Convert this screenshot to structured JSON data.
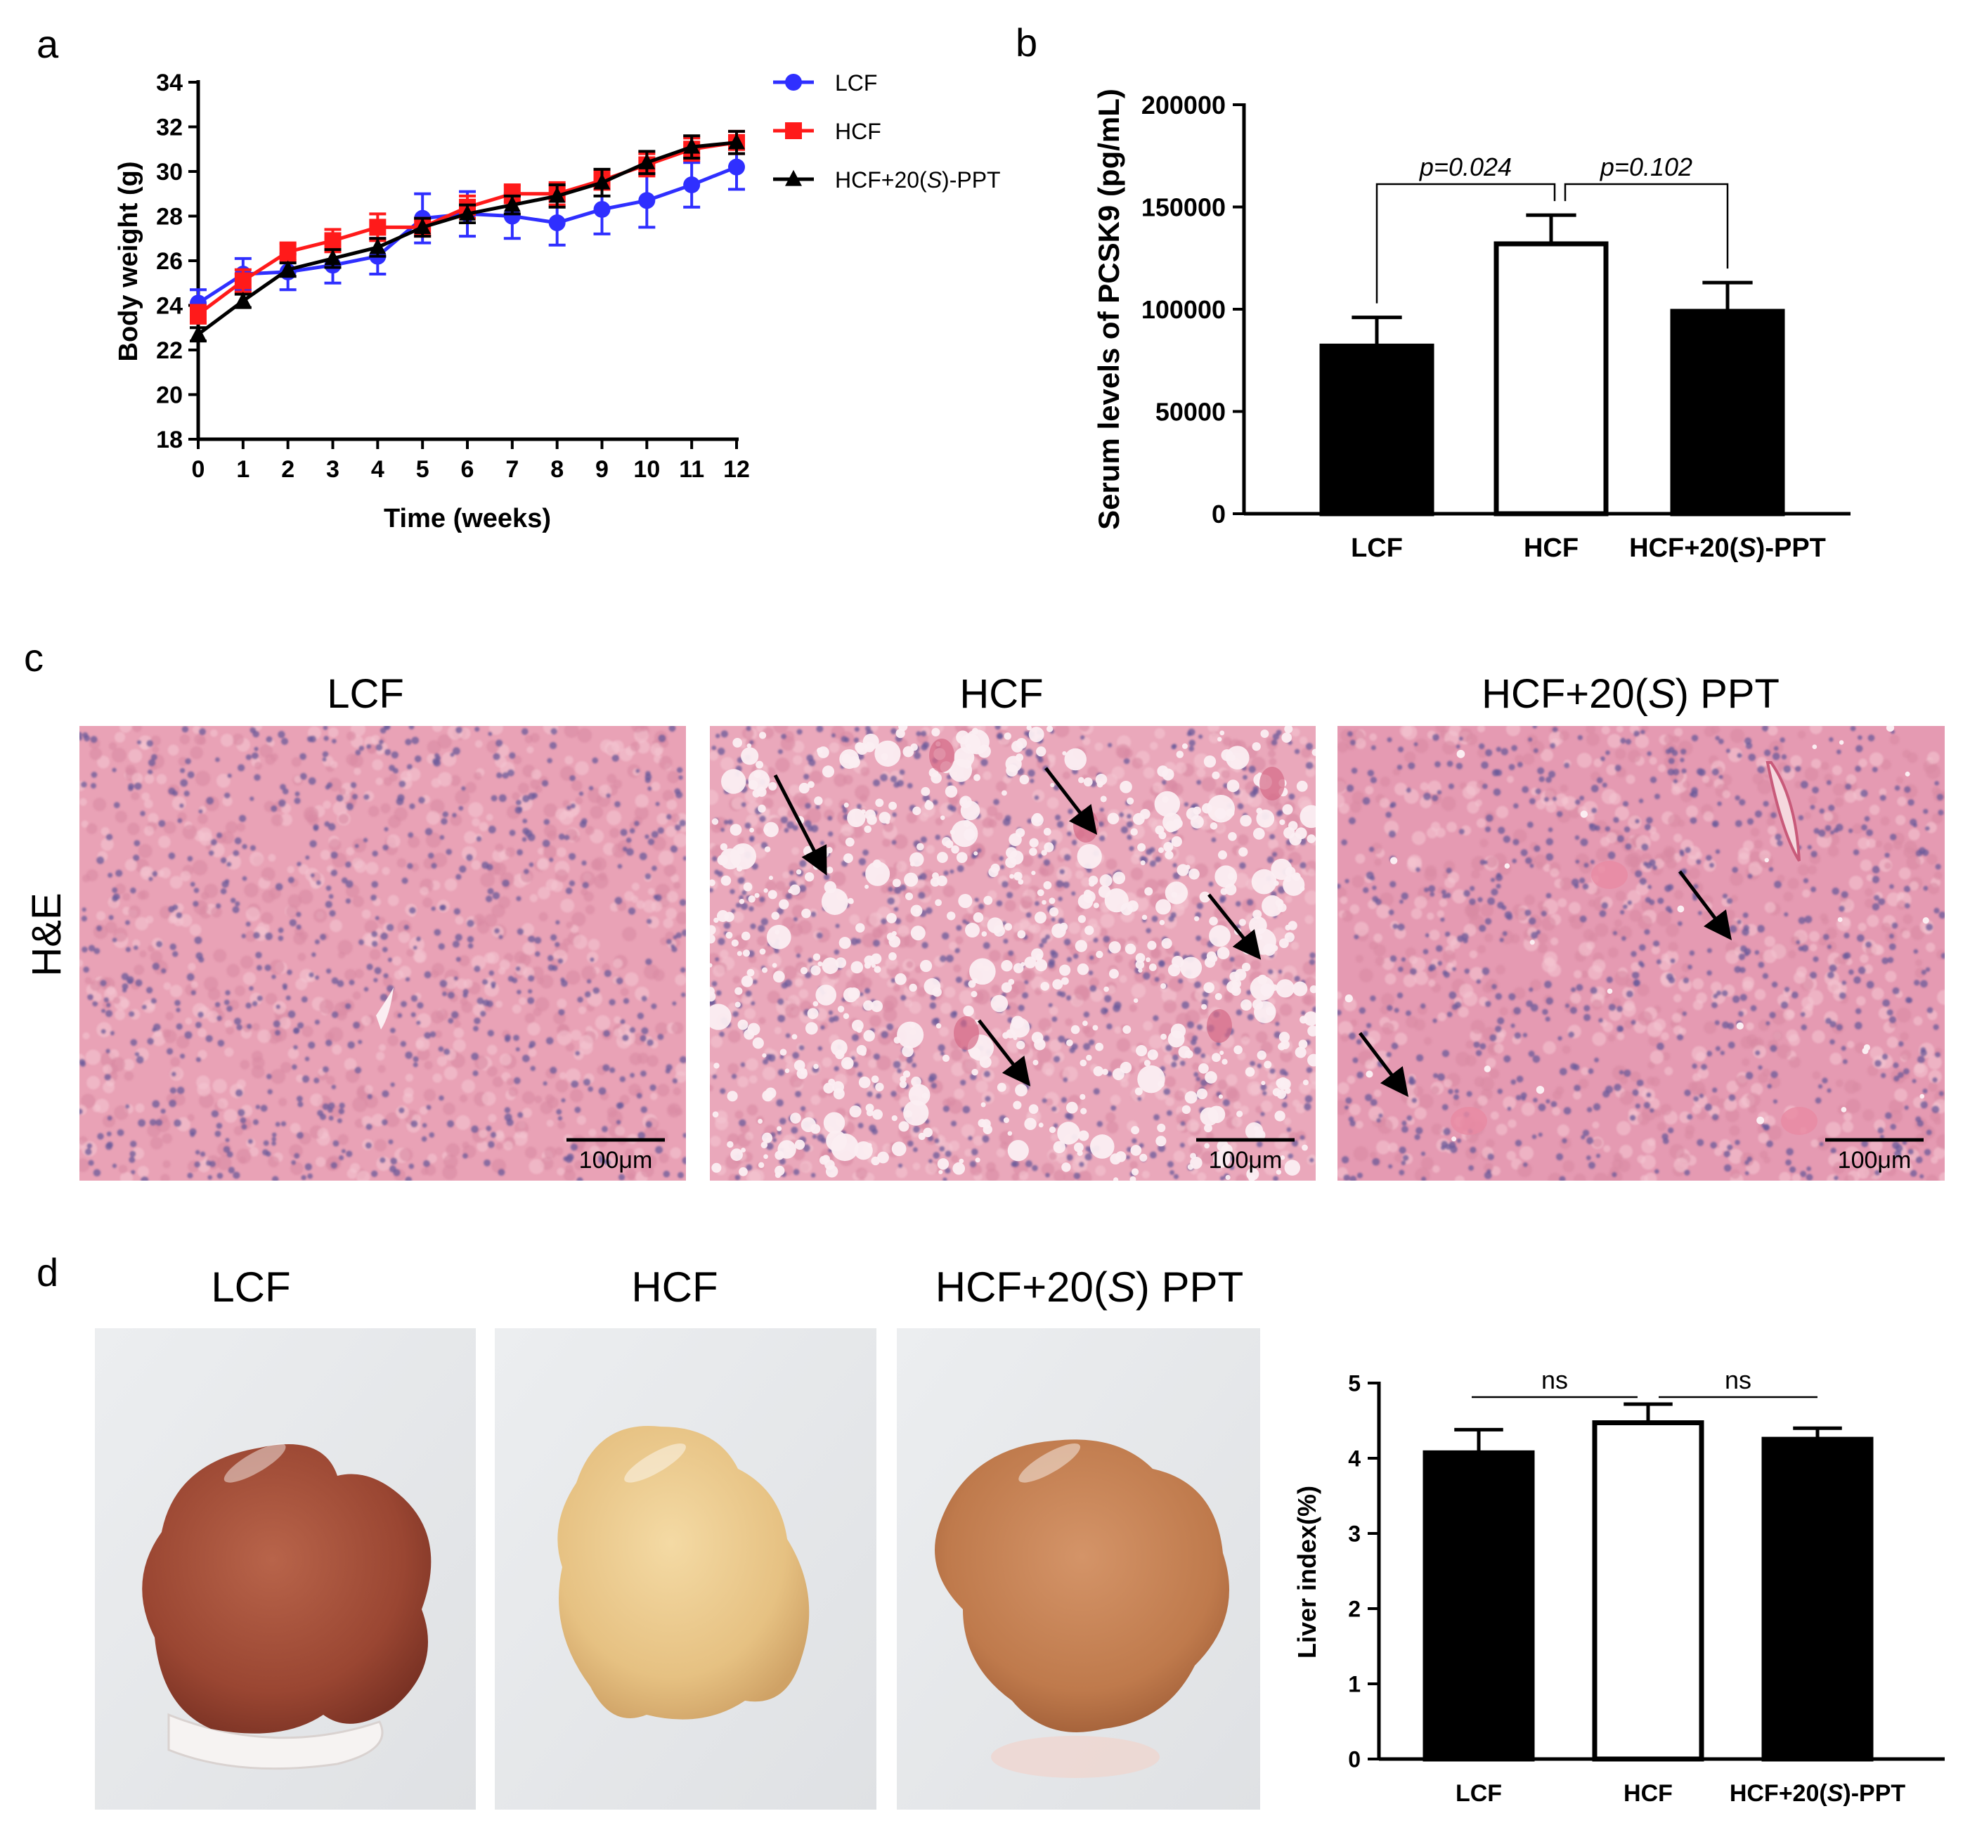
{
  "panel_labels": {
    "a": "a",
    "b": "b",
    "c": "c",
    "d": "d"
  },
  "colors": {
    "LCF": "#2f2fff",
    "HCF": "#ff1a1a",
    "HCF_PPT": "#000000",
    "bar_fill": "#000000",
    "bar_open": "#ffffff",
    "tissue": "#e8a0b4",
    "nuclei": "#6a5a9a"
  },
  "chart_data": [
    {
      "id": "a",
      "type": "line",
      "xlabel": "Time (weeks)",
      "ylabel": "Body weight (g)",
      "xlim": [
        0,
        12
      ],
      "ylim": [
        18,
        34
      ],
      "xticks": [
        0,
        1,
        2,
        3,
        4,
        5,
        6,
        7,
        8,
        9,
        10,
        11,
        12
      ],
      "yticks": [
        18,
        20,
        22,
        24,
        26,
        28,
        30,
        32,
        34
      ],
      "legend_placement": "right",
      "x": [
        0,
        1,
        2,
        3,
        4,
        5,
        6,
        7,
        8,
        9,
        10,
        11,
        12
      ],
      "series": [
        {
          "name": "LCF",
          "name_parts": [
            "LCF",
            "",
            ""
          ],
          "marker": "circle",
          "color": "#2f2fff",
          "values": [
            24.1,
            25.4,
            25.5,
            25.8,
            26.2,
            27.9,
            28.1,
            28.0,
            27.7,
            28.3,
            28.7,
            29.4,
            30.2
          ],
          "errors": [
            0.6,
            0.7,
            0.8,
            0.8,
            0.8,
            1.1,
            1.0,
            1.0,
            1.0,
            1.1,
            1.2,
            1.0,
            1.0
          ]
        },
        {
          "name": "HCF",
          "name_parts": [
            "HCF",
            "",
            ""
          ],
          "marker": "square",
          "color": "#ff1a1a",
          "values": [
            23.6,
            25.1,
            26.4,
            26.9,
            27.5,
            27.5,
            28.4,
            29.0,
            29.0,
            29.6,
            30.3,
            31.0,
            31.3
          ],
          "errors": [
            0.4,
            0.5,
            0.4,
            0.5,
            0.6,
            0.4,
            0.5,
            0.4,
            0.5,
            0.4,
            0.5,
            0.5,
            0.5
          ]
        },
        {
          "name": "HCF+20(S)-PPT",
          "name_parts": [
            "HCF+20(",
            "S",
            ")-PPT"
          ],
          "marker": "triangle",
          "color": "#000000",
          "values": [
            22.7,
            24.2,
            25.6,
            26.1,
            26.6,
            27.5,
            28.1,
            28.5,
            28.9,
            29.5,
            30.4,
            31.1,
            31.3
          ],
          "errors": [
            0.3,
            0.3,
            0.3,
            0.4,
            0.4,
            0.4,
            0.4,
            0.4,
            0.5,
            0.6,
            0.5,
            0.5,
            0.5
          ]
        }
      ]
    },
    {
      "id": "b",
      "type": "bar",
      "ylabel": "Serum levels of PCSK9 (pg/mL)",
      "ylim": [
        0,
        200000
      ],
      "yticks": [
        0,
        50000,
        100000,
        150000,
        200000
      ],
      "categories": [
        "LCF",
        "HCF",
        "HCF+20(S)-PPT"
      ],
      "category_parts": [
        [
          "LCF",
          "",
          ""
        ],
        [
          "HCF",
          "",
          ""
        ],
        [
          "HCF+20(",
          "S",
          ")-PPT"
        ]
      ],
      "values": [
        83000,
        133000,
        100000
      ],
      "errors": [
        13000,
        13000,
        13000
      ],
      "open_bar": [
        false,
        true,
        false
      ],
      "annotations": [
        {
          "from": 0,
          "to": 1,
          "text": "p=0.024"
        },
        {
          "from": 1,
          "to": 2,
          "text": "p=0.102"
        }
      ]
    },
    {
      "id": "d",
      "type": "bar",
      "ylabel": "Liver index(%)",
      "ylim": [
        0,
        5
      ],
      "yticks": [
        0,
        1,
        2,
        3,
        4,
        5
      ],
      "categories": [
        "LCF",
        "HCF",
        "HCF+20(S)-PPT"
      ],
      "category_parts": [
        [
          "LCF",
          "",
          ""
        ],
        [
          "HCF",
          "",
          ""
        ],
        [
          "HCF+20(",
          "S",
          ")-PPT"
        ]
      ],
      "values": [
        4.1,
        4.5,
        4.28
      ],
      "errors": [
        0.28,
        0.22,
        0.12
      ],
      "open_bar": [
        false,
        true,
        false
      ],
      "annotations": [
        {
          "from": 0,
          "to": 1,
          "text": "ns"
        },
        {
          "from": 1,
          "to": 2,
          "text": "ns"
        }
      ]
    }
  ],
  "histology": {
    "row_label": "H&E",
    "panels": [
      {
        "title": "LCF",
        "title_parts": [
          "LCF",
          "",
          ""
        ],
        "scale_label": "100μm"
      },
      {
        "title": "HCF",
        "title_parts": [
          "HCF",
          "",
          ""
        ],
        "scale_label": "100μm"
      },
      {
        "title": "HCF+20(S) PPT",
        "title_parts": [
          "HCF+20(",
          "S",
          ") PPT"
        ],
        "scale_label": "100μm"
      }
    ]
  },
  "liver_photos": {
    "panels": [
      {
        "title": "LCF",
        "title_parts": [
          "LCF",
          "",
          ""
        ]
      },
      {
        "title": "HCF",
        "title_parts": [
          "HCF",
          "",
          ""
        ]
      },
      {
        "title": "HCF+20(S) PPT",
        "title_parts": [
          "HCF+20(",
          "S",
          ") PPT"
        ]
      }
    ]
  }
}
